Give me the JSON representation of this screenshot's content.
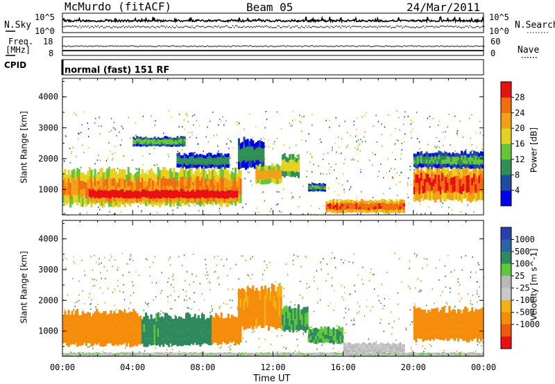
{
  "header": {
    "station": "McMurdo (fitACF)",
    "beam": "Beam 05",
    "date": "24/Mar/2011"
  },
  "aux_labels": {
    "nsky": "N.Sky",
    "nsky_ticks": [
      "10^5",
      "10^0"
    ],
    "freq": "Freq.",
    "freq_unit": "[MHz]",
    "freq_ticks": [
      "18",
      "8"
    ],
    "cpid": "CPID",
    "cpid_value": "normal (fast) 151 RF",
    "nsearch": "N.Search",
    "nsearch_ticks": [
      "10^5",
      "10^0"
    ],
    "nave": "Nave",
    "nave_ticks": [
      "60",
      "0"
    ]
  },
  "colors": {
    "power_scale": [
      "#0000ee",
      "#1e4ba0",
      "#2f8f55",
      "#67c43a",
      "#e6d020",
      "#f2a015",
      "#f26c10",
      "#e81010"
    ],
    "velocity_scale": [
      "#e81010",
      "#f05a10",
      "#f58c0a",
      "#f6b010",
      "#c8c8c8",
      "#b8b8b8",
      "#5ec83a",
      "#2e8a5c",
      "#2e62a8",
      "#2540b0"
    ]
  },
  "chart_data": [
    {
      "type": "heatmap",
      "quantity": "Power",
      "ylabel": "Slant Range [km]",
      "ylim": [
        180,
        4600
      ],
      "yticks": [
        "1000",
        "2000",
        "3000",
        "4000"
      ],
      "xlim": [
        0,
        24
      ],
      "colorbar_label": "Power [dB]",
      "colorbar_ticks": [
        "4",
        "8",
        "12",
        "16",
        "20",
        "24",
        "28"
      ],
      "colorbar_range": [
        0,
        32
      ],
      "regions": [
        {
          "t0": 0.0,
          "t1": 10.2,
          "r0": 500,
          "r1": 1600,
          "value": 24
        },
        {
          "t0": 1.5,
          "t1": 10.0,
          "r0": 600,
          "r1": 1100,
          "value": 30
        },
        {
          "t0": 4.0,
          "t1": 7.0,
          "r0": 2400,
          "r1": 2700,
          "value": 13
        },
        {
          "t0": 6.5,
          "t1": 9.5,
          "r0": 1700,
          "r1": 2150,
          "value": 10
        },
        {
          "t0": 10.0,
          "t1": 11.5,
          "r0": 1700,
          "r1": 2600,
          "value": 10
        },
        {
          "t0": 11.0,
          "t1": 12.5,
          "r0": 1200,
          "r1": 1800,
          "value": 22
        },
        {
          "t0": 12.5,
          "t1": 13.5,
          "r0": 1400,
          "r1": 2100,
          "value": 18
        },
        {
          "t0": 14.0,
          "t1": 15.0,
          "r0": 950,
          "r1": 1200,
          "value": 12
        },
        {
          "t0": 15.0,
          "t1": 19.5,
          "r0": 250,
          "r1": 650,
          "value": 27
        },
        {
          "t0": 20.0,
          "t1": 24.0,
          "r0": 650,
          "r1": 1700,
          "value": 28
        },
        {
          "t0": 20.0,
          "t1": 24.0,
          "r0": 1700,
          "r1": 2200,
          "value": 12
        }
      ]
    },
    {
      "type": "heatmap",
      "quantity": "Velocity",
      "ylabel": "Slant Range [km]",
      "ylim": [
        180,
        4600
      ],
      "yticks": [
        "1000",
        "2000",
        "3000",
        "4000"
      ],
      "xlim": [
        0,
        24
      ],
      "xticks": [
        "00:00",
        "04:00",
        "08:00",
        "12:00",
        "16:00",
        "20:00",
        "00:00"
      ],
      "xlabel": "Time UT",
      "colorbar_label": "Velocity [m s^-1]",
      "colorbar_ticks": [
        "1000",
        "500",
        "100",
        "25",
        "-25",
        "-100",
        "-500",
        "-1000"
      ],
      "regions": [
        {
          "t0": 0.0,
          "t1": 4.5,
          "r0": 550,
          "r1": 1600,
          "value": -200
        },
        {
          "t0": 4.5,
          "t1": 6.0,
          "r0": 550,
          "r1": 1500,
          "value": 150
        },
        {
          "t0": 6.0,
          "t1": 8.5,
          "r0": 550,
          "r1": 1500,
          "value": 300
        },
        {
          "t0": 8.5,
          "t1": 10.2,
          "r0": 600,
          "r1": 1500,
          "value": -200
        },
        {
          "t0": 10.0,
          "t1": 12.5,
          "r0": 1100,
          "r1": 2400,
          "value": -150
        },
        {
          "t0": 12.5,
          "t1": 14.0,
          "r0": 1000,
          "r1": 1800,
          "value": 100
        },
        {
          "t0": 14.0,
          "t1": 16.0,
          "r0": 600,
          "r1": 1100,
          "value": 100
        },
        {
          "t0": 16.0,
          "t1": 19.5,
          "r0": 300,
          "r1": 600,
          "value": 0
        },
        {
          "t0": 20.0,
          "t1": 24.0,
          "r0": 700,
          "r1": 1700,
          "value": -200
        },
        {
          "t0": 0.0,
          "t1": 24.0,
          "r0": 180,
          "r1": 300,
          "value": 10
        }
      ]
    },
    {
      "type": "line",
      "quantity": "N.Sky / N.Search",
      "xlim": [
        0,
        24
      ],
      "series": [
        {
          "x": [
            0,
            4,
            8,
            12,
            16,
            20,
            24
          ],
          "y": [
            5000,
            8000,
            6000,
            7000,
            6000,
            9000,
            7000
          ]
        },
        {
          "x": [
            0,
            4,
            8,
            12,
            16,
            20,
            24
          ],
          "y": [
            40,
            60,
            50,
            45,
            55,
            50,
            45
          ]
        }
      ]
    },
    {
      "type": "line",
      "quantity": "Freq. / Nave",
      "xlim": [
        0,
        24
      ],
      "series": [
        {
          "x": [
            0,
            24
          ],
          "y": [
            11.5,
            11.5
          ]
        },
        {
          "x": [
            0,
            24
          ],
          "y": [
            8.5,
            8.5
          ]
        }
      ]
    }
  ]
}
